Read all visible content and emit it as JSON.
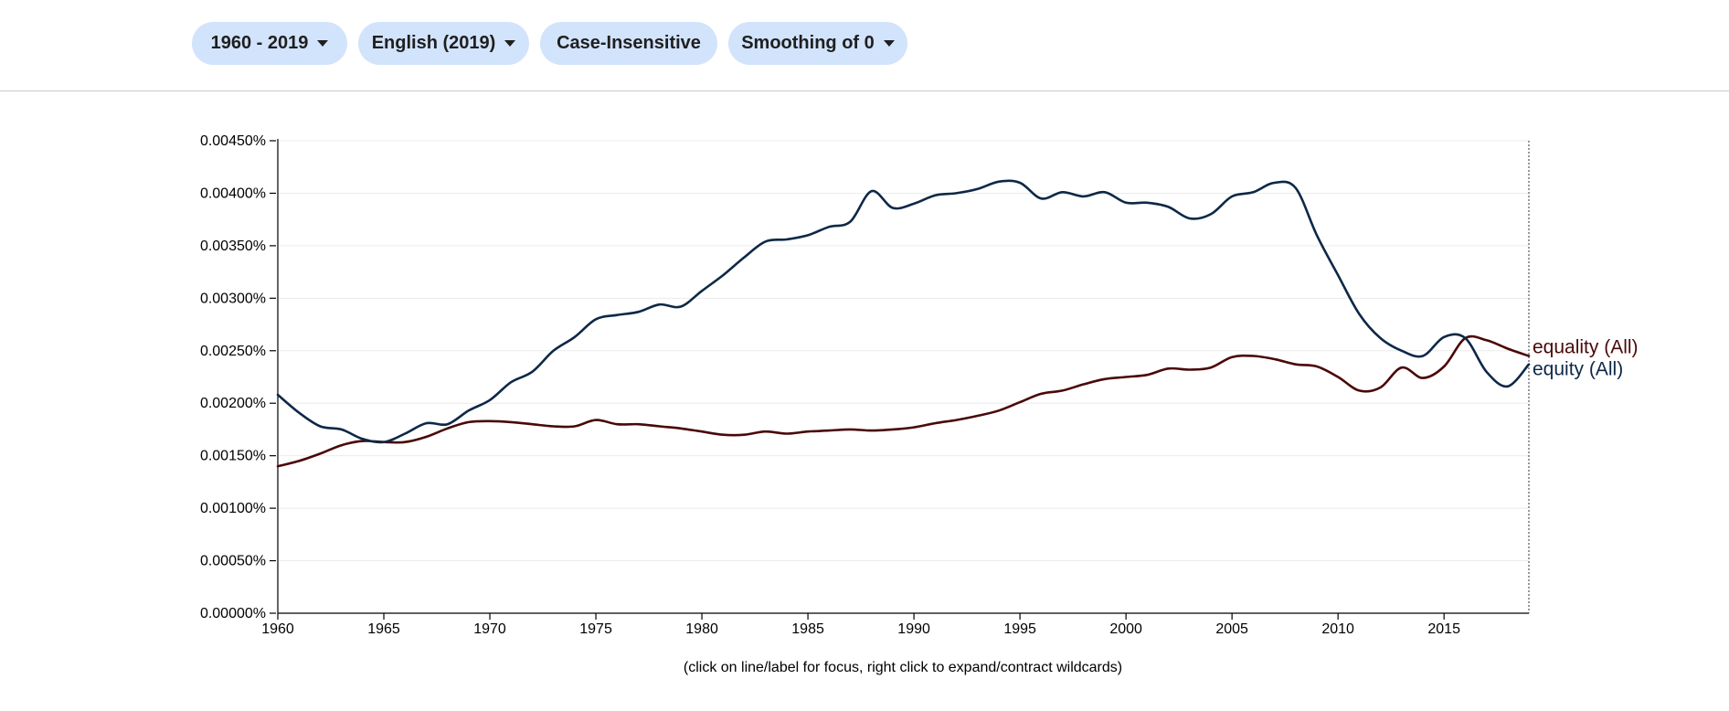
{
  "toolbar": {
    "date_range": "1960 - 2019",
    "corpus": "English (2019)",
    "case": "Case-Insensitive",
    "smoothing": "Smoothing of 0"
  },
  "hint": "(click on line/label for focus, right click to expand/contract wildcards)",
  "chart_data": {
    "type": "line",
    "xlim": [
      1960,
      2019
    ],
    "ylim": [
      0,
      0.0045
    ],
    "x_ticks": [
      "1960",
      "1965",
      "1970",
      "1975",
      "1980",
      "1985",
      "1990",
      "1995",
      "2000",
      "2005",
      "2010",
      "2015"
    ],
    "y_ticks": [
      "0.00000%",
      "0.00050%",
      "0.00100%",
      "0.00150%",
      "0.00200%",
      "0.00250%",
      "0.00300%",
      "0.00350%",
      "0.00400%",
      "0.00450%"
    ],
    "grid": true,
    "legend": "right",
    "series": [
      {
        "name": "equity (All)",
        "color": "#0d2847",
        "x": [
          1960,
          1961,
          1962,
          1963,
          1964,
          1965,
          1966,
          1967,
          1968,
          1969,
          1970,
          1971,
          1972,
          1973,
          1974,
          1975,
          1976,
          1977,
          1978,
          1979,
          1980,
          1981,
          1982,
          1983,
          1984,
          1985,
          1986,
          1987,
          1988,
          1989,
          1990,
          1991,
          1992,
          1993,
          1994,
          1995,
          1996,
          1997,
          1998,
          1999,
          2000,
          2001,
          2002,
          2003,
          2004,
          2005,
          2006,
          2007,
          2008,
          2009,
          2010,
          2011,
          2012,
          2013,
          2014,
          2015,
          2016,
          2017,
          2018,
          2019
        ],
        "y": [
          0.00208,
          0.00191,
          0.00178,
          0.00175,
          0.00166,
          0.00163,
          0.00171,
          0.00181,
          0.0018,
          0.00193,
          0.00203,
          0.0022,
          0.0023,
          0.0025,
          0.00263,
          0.0028,
          0.00284,
          0.00287,
          0.00294,
          0.00292,
          0.00307,
          0.00322,
          0.00339,
          0.00354,
          0.00356,
          0.0036,
          0.00368,
          0.00373,
          0.00402,
          0.00386,
          0.0039,
          0.00398,
          0.004,
          0.00404,
          0.00411,
          0.0041,
          0.00395,
          0.00401,
          0.00397,
          0.00401,
          0.00391,
          0.00391,
          0.00387,
          0.00376,
          0.0038,
          0.00397,
          0.00401,
          0.0041,
          0.00405,
          0.0036,
          0.00322,
          0.00285,
          0.00262,
          0.0025,
          0.00245,
          0.00263,
          0.00262,
          0.0023,
          0.00216,
          0.00237
        ]
      },
      {
        "name": "equality (All)",
        "color": "#4a0808",
        "x": [
          1960,
          1961,
          1962,
          1963,
          1964,
          1965,
          1966,
          1967,
          1968,
          1969,
          1970,
          1971,
          1972,
          1973,
          1974,
          1975,
          1976,
          1977,
          1978,
          1979,
          1980,
          1981,
          1982,
          1983,
          1984,
          1985,
          1986,
          1987,
          1988,
          1989,
          1990,
          1991,
          1992,
          1993,
          1994,
          1995,
          1996,
          1997,
          1998,
          1999,
          2000,
          2001,
          2002,
          2003,
          2004,
          2005,
          2006,
          2007,
          2008,
          2009,
          2010,
          2011,
          2012,
          2013,
          2014,
          2015,
          2016,
          2017,
          2018,
          2019
        ],
        "y": [
          0.0014,
          0.00145,
          0.00152,
          0.0016,
          0.00164,
          0.00163,
          0.00163,
          0.00168,
          0.00176,
          0.00182,
          0.00183,
          0.00182,
          0.0018,
          0.00178,
          0.00178,
          0.00184,
          0.0018,
          0.0018,
          0.00178,
          0.00176,
          0.00173,
          0.0017,
          0.0017,
          0.00173,
          0.00171,
          0.00173,
          0.00174,
          0.00175,
          0.00174,
          0.00175,
          0.00177,
          0.00181,
          0.00184,
          0.00188,
          0.00193,
          0.00201,
          0.00209,
          0.00212,
          0.00218,
          0.00223,
          0.00225,
          0.00227,
          0.00233,
          0.00232,
          0.00234,
          0.00244,
          0.00245,
          0.00242,
          0.00237,
          0.00235,
          0.00225,
          0.00212,
          0.00215,
          0.00234,
          0.00224,
          0.00235,
          0.00262,
          0.0026,
          0.00252,
          0.00245
        ]
      }
    ]
  }
}
